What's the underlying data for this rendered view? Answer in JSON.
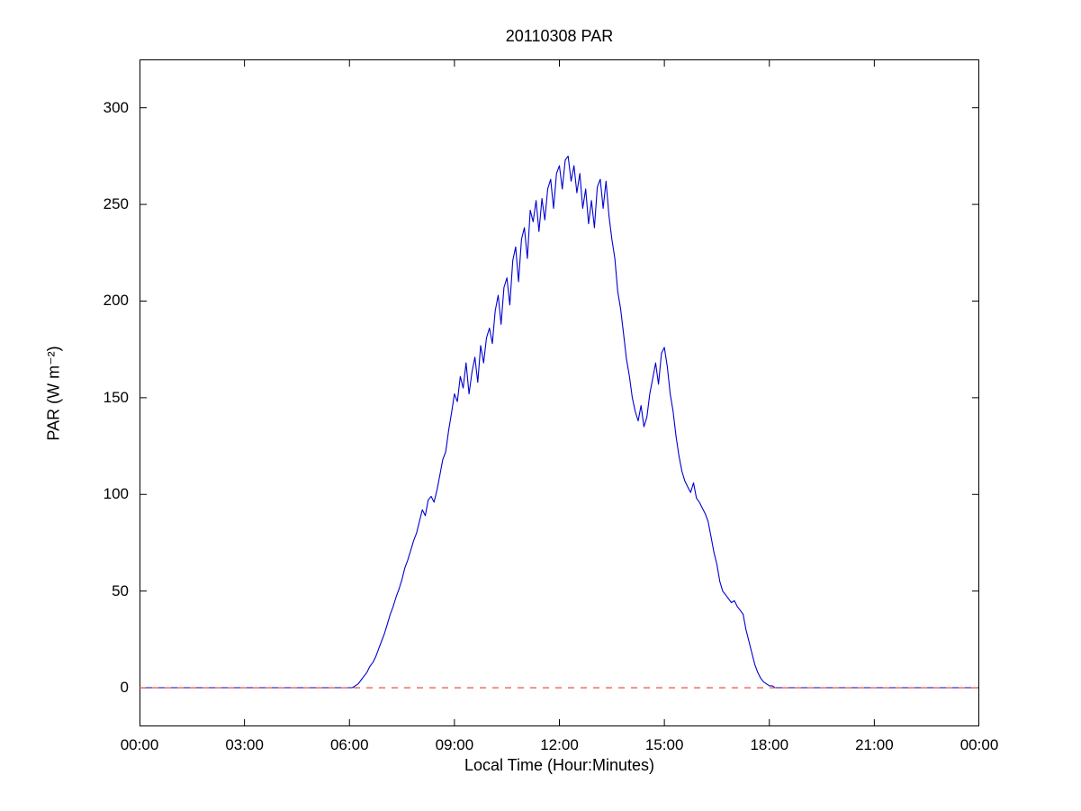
{
  "figure": {
    "background": "#ffffff",
    "axes_color": "#000000"
  },
  "chart_data": {
    "type": "line",
    "title": "20110308 PAR",
    "xlabel": "Local Time (Hour:Minutes)",
    "ylabel": "PAR (W m⁻²)",
    "grid": false,
    "legend": "none",
    "x_axis": {
      "lim_minutes": [
        0,
        1440
      ],
      "tick_positions_minutes": [
        0,
        180,
        360,
        540,
        720,
        900,
        1080,
        1260,
        1440
      ],
      "tick_labels": [
        "00:00",
        "03:00",
        "06:00",
        "09:00",
        "12:00",
        "15:00",
        "18:00",
        "21:00",
        "00:00"
      ]
    },
    "y_axis": {
      "lim": [
        -20,
        325
      ],
      "ticks": [
        0,
        50,
        100,
        150,
        200,
        250,
        300
      ]
    },
    "series": [
      {
        "name": "PAR",
        "color": "#0000d0",
        "line_style": "solid",
        "points_minutes_value": [
          [
            0,
            0
          ],
          [
            60,
            0
          ],
          [
            120,
            0
          ],
          [
            180,
            0
          ],
          [
            240,
            0
          ],
          [
            300,
            0
          ],
          [
            330,
            0
          ],
          [
            350,
            0
          ],
          [
            360,
            0
          ],
          [
            365,
            0
          ],
          [
            370,
            1
          ],
          [
            375,
            2
          ],
          [
            380,
            4
          ],
          [
            385,
            6
          ],
          [
            390,
            8
          ],
          [
            395,
            11
          ],
          [
            400,
            13
          ],
          [
            405,
            16
          ],
          [
            410,
            20
          ],
          [
            415,
            24
          ],
          [
            420,
            28
          ],
          [
            425,
            33
          ],
          [
            430,
            38
          ],
          [
            435,
            42
          ],
          [
            440,
            47
          ],
          [
            445,
            51
          ],
          [
            450,
            56
          ],
          [
            455,
            62
          ],
          [
            460,
            66
          ],
          [
            465,
            71
          ],
          [
            470,
            76
          ],
          [
            475,
            80
          ],
          [
            480,
            86
          ],
          [
            485,
            92
          ],
          [
            490,
            89
          ],
          [
            495,
            97
          ],
          [
            500,
            99
          ],
          [
            505,
            96
          ],
          [
            510,
            102
          ],
          [
            515,
            110
          ],
          [
            520,
            118
          ],
          [
            525,
            122
          ],
          [
            530,
            133
          ],
          [
            535,
            142
          ],
          [
            540,
            152
          ],
          [
            545,
            148
          ],
          [
            550,
            161
          ],
          [
            555,
            155
          ],
          [
            560,
            168
          ],
          [
            565,
            152
          ],
          [
            570,
            163
          ],
          [
            575,
            171
          ],
          [
            580,
            158
          ],
          [
            585,
            177
          ],
          [
            590,
            168
          ],
          [
            595,
            181
          ],
          [
            600,
            186
          ],
          [
            605,
            178
          ],
          [
            610,
            195
          ],
          [
            615,
            203
          ],
          [
            620,
            188
          ],
          [
            625,
            207
          ],
          [
            630,
            212
          ],
          [
            635,
            198
          ],
          [
            640,
            221
          ],
          [
            645,
            228
          ],
          [
            650,
            210
          ],
          [
            655,
            232
          ],
          [
            660,
            238
          ],
          [
            665,
            222
          ],
          [
            670,
            247
          ],
          [
            675,
            241
          ],
          [
            680,
            252
          ],
          [
            685,
            236
          ],
          [
            690,
            253
          ],
          [
            695,
            242
          ],
          [
            700,
            258
          ],
          [
            705,
            263
          ],
          [
            710,
            248
          ],
          [
            715,
            266
          ],
          [
            720,
            270
          ],
          [
            725,
            258
          ],
          [
            730,
            273
          ],
          [
            735,
            275
          ],
          [
            740,
            262
          ],
          [
            745,
            270
          ],
          [
            750,
            256
          ],
          [
            755,
            266
          ],
          [
            760,
            248
          ],
          [
            765,
            258
          ],
          [
            770,
            240
          ],
          [
            775,
            252
          ],
          [
            780,
            238
          ],
          [
            785,
            259
          ],
          [
            790,
            263
          ],
          [
            795,
            248
          ],
          [
            800,
            262
          ],
          [
            805,
            244
          ],
          [
            810,
            232
          ],
          [
            815,
            222
          ],
          [
            820,
            205
          ],
          [
            825,
            196
          ],
          [
            830,
            183
          ],
          [
            835,
            170
          ],
          [
            840,
            161
          ],
          [
            845,
            150
          ],
          [
            850,
            143
          ],
          [
            855,
            138
          ],
          [
            860,
            146
          ],
          [
            865,
            135
          ],
          [
            870,
            140
          ],
          [
            875,
            152
          ],
          [
            880,
            160
          ],
          [
            885,
            168
          ],
          [
            890,
            157
          ],
          [
            895,
            173
          ],
          [
            900,
            176
          ],
          [
            905,
            166
          ],
          [
            910,
            152
          ],
          [
            915,
            143
          ],
          [
            920,
            130
          ],
          [
            925,
            120
          ],
          [
            930,
            112
          ],
          [
            935,
            107
          ],
          [
            940,
            104
          ],
          [
            945,
            101
          ],
          [
            950,
            106
          ],
          [
            955,
            98
          ],
          [
            960,
            96
          ],
          [
            965,
            93
          ],
          [
            970,
            90
          ],
          [
            975,
            86
          ],
          [
            980,
            78
          ],
          [
            985,
            70
          ],
          [
            990,
            64
          ],
          [
            995,
            55
          ],
          [
            1000,
            50
          ],
          [
            1005,
            48
          ],
          [
            1010,
            46
          ],
          [
            1015,
            44
          ],
          [
            1020,
            45
          ],
          [
            1025,
            42
          ],
          [
            1030,
            40
          ],
          [
            1035,
            38
          ],
          [
            1040,
            30
          ],
          [
            1045,
            24
          ],
          [
            1050,
            18
          ],
          [
            1055,
            12
          ],
          [
            1060,
            8
          ],
          [
            1065,
            5
          ],
          [
            1070,
            3
          ],
          [
            1075,
            2
          ],
          [
            1080,
            1
          ],
          [
            1085,
            1
          ],
          [
            1090,
            0
          ],
          [
            1095,
            0
          ],
          [
            1100,
            0
          ],
          [
            1105,
            0
          ],
          [
            1110,
            0
          ],
          [
            1140,
            0
          ],
          [
            1200,
            0
          ],
          [
            1260,
            0
          ],
          [
            1320,
            0
          ],
          [
            1380,
            0
          ],
          [
            1440,
            0
          ]
        ]
      },
      {
        "name": "zero-reference",
        "color": "#e8402a",
        "line_style": "dashed",
        "y_value": 0
      }
    ]
  }
}
